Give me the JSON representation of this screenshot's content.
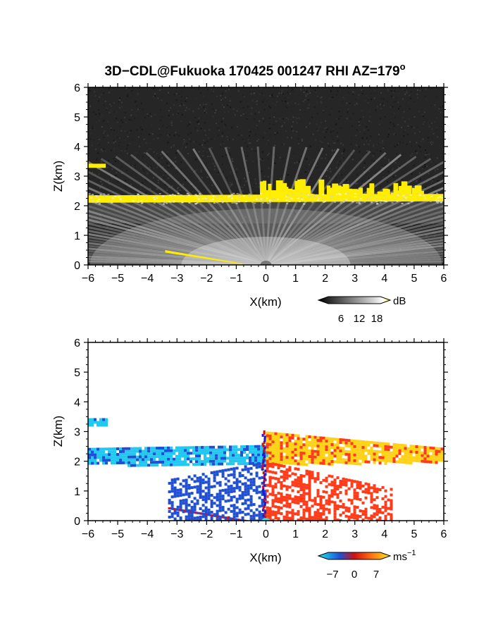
{
  "title": {
    "main": "3D−CDL@Fukuoka 170425 001247 RHI AZ=179",
    "superscript": "o"
  },
  "colors": {
    "background_top": "#262626",
    "snr_band": "#ffee00",
    "snr_gray": "#bdbdbd",
    "velocity_negative": "#1f4fd6",
    "velocity_negative_light": "#22c8f0",
    "velocity_positive": "#ff3b1a",
    "velocity_positive_light": "#ffd21a"
  },
  "chart_data": [
    {
      "type": "heatmap",
      "panel": "intensity",
      "xlabel": "X(km)",
      "ylabel": "Z(km)",
      "xlim": [
        -6,
        6
      ],
      "ylim": [
        0,
        6
      ],
      "xticks": [
        "−6",
        "−5",
        "−4",
        "−3",
        "−2",
        "−1",
        "0",
        "1",
        "2",
        "3",
        "4",
        "5",
        "6"
      ],
      "yticks": [
        "0",
        "1",
        "2",
        "3",
        "4",
        "5",
        "6"
      ],
      "grid": false,
      "colorbar": {
        "unit": "dB",
        "ticks": [
          "6",
          "12",
          "18"
        ],
        "range": [
          0,
          22
        ],
        "colormap": "gray-to-yellow"
      },
      "features": [
        {
          "name": "layer",
          "x": [
            -6,
            6
          ],
          "z_bottom": [
            2.1,
            2.15
          ],
          "z_top": [
            2.35,
            2.4
          ],
          "value_db": 20
        },
        {
          "name": "elevated",
          "x": [
            -0.2,
            5.2
          ],
          "z_bottom": [
            2.3,
            2.3
          ],
          "z_top": [
            2.9,
            2.8
          ],
          "value_db": 20
        },
        {
          "name": "aloft",
          "x": [
            -6,
            -5.4
          ],
          "z_bottom": [
            3.28,
            3.28
          ],
          "z_top": [
            3.42,
            3.42
          ],
          "value_db": 20
        },
        {
          "name": "low",
          "x": [
            -3.4,
            -0.8
          ],
          "z_bottom": [
            0.0,
            0.0
          ],
          "z_top": [
            0.5,
            0.05
          ],
          "value_db": 20
        }
      ]
    },
    {
      "type": "heatmap",
      "panel": "velocity",
      "xlabel": "X(km)",
      "ylabel": "Z(km)",
      "xlim": [
        -6,
        6
      ],
      "ylim": [
        0,
        6
      ],
      "xticks": [
        "−6",
        "−5",
        "−4",
        "−3",
        "−2",
        "−1",
        "0",
        "1",
        "2",
        "3",
        "4",
        "5",
        "6"
      ],
      "yticks": [
        "0",
        "1",
        "2",
        "3",
        "4",
        "5",
        "6"
      ],
      "grid": false,
      "colorbar": {
        "unit": "ms",
        "unit_exponent": "−1",
        "ticks": [
          "−7",
          "0",
          "7"
        ],
        "range": [
          -10,
          10
        ],
        "colormap": "blue-red-yellow"
      },
      "features": [
        {
          "name": "layer-left",
          "x": [
            -6,
            0
          ],
          "z_bottom": [
            1.9,
            1.9
          ],
          "z_top": [
            2.45,
            2.55
          ],
          "velocity_ms": -6
        },
        {
          "name": "layer-right",
          "x": [
            0,
            6
          ],
          "z_bottom": [
            1.9,
            2.0
          ],
          "z_top": [
            3.0,
            2.45
          ],
          "velocity_ms": 6
        },
        {
          "name": "aloft",
          "x": [
            -6,
            -5.4
          ],
          "z_bottom": [
            3.25,
            3.25
          ],
          "z_top": [
            3.45,
            3.45
          ],
          "velocity_ms": -6
        },
        {
          "name": "lower-left",
          "x": [
            -3.3,
            0
          ],
          "z_bottom": [
            0.0,
            0.0
          ],
          "z_top": [
            1.4,
            2.0
          ],
          "velocity_ms": -3
        },
        {
          "name": "lower-right",
          "x": [
            0,
            4.2
          ],
          "z_bottom": [
            0.0,
            0.0
          ],
          "z_top": [
            2.0,
            1.1
          ],
          "velocity_ms": 3
        }
      ]
    }
  ]
}
